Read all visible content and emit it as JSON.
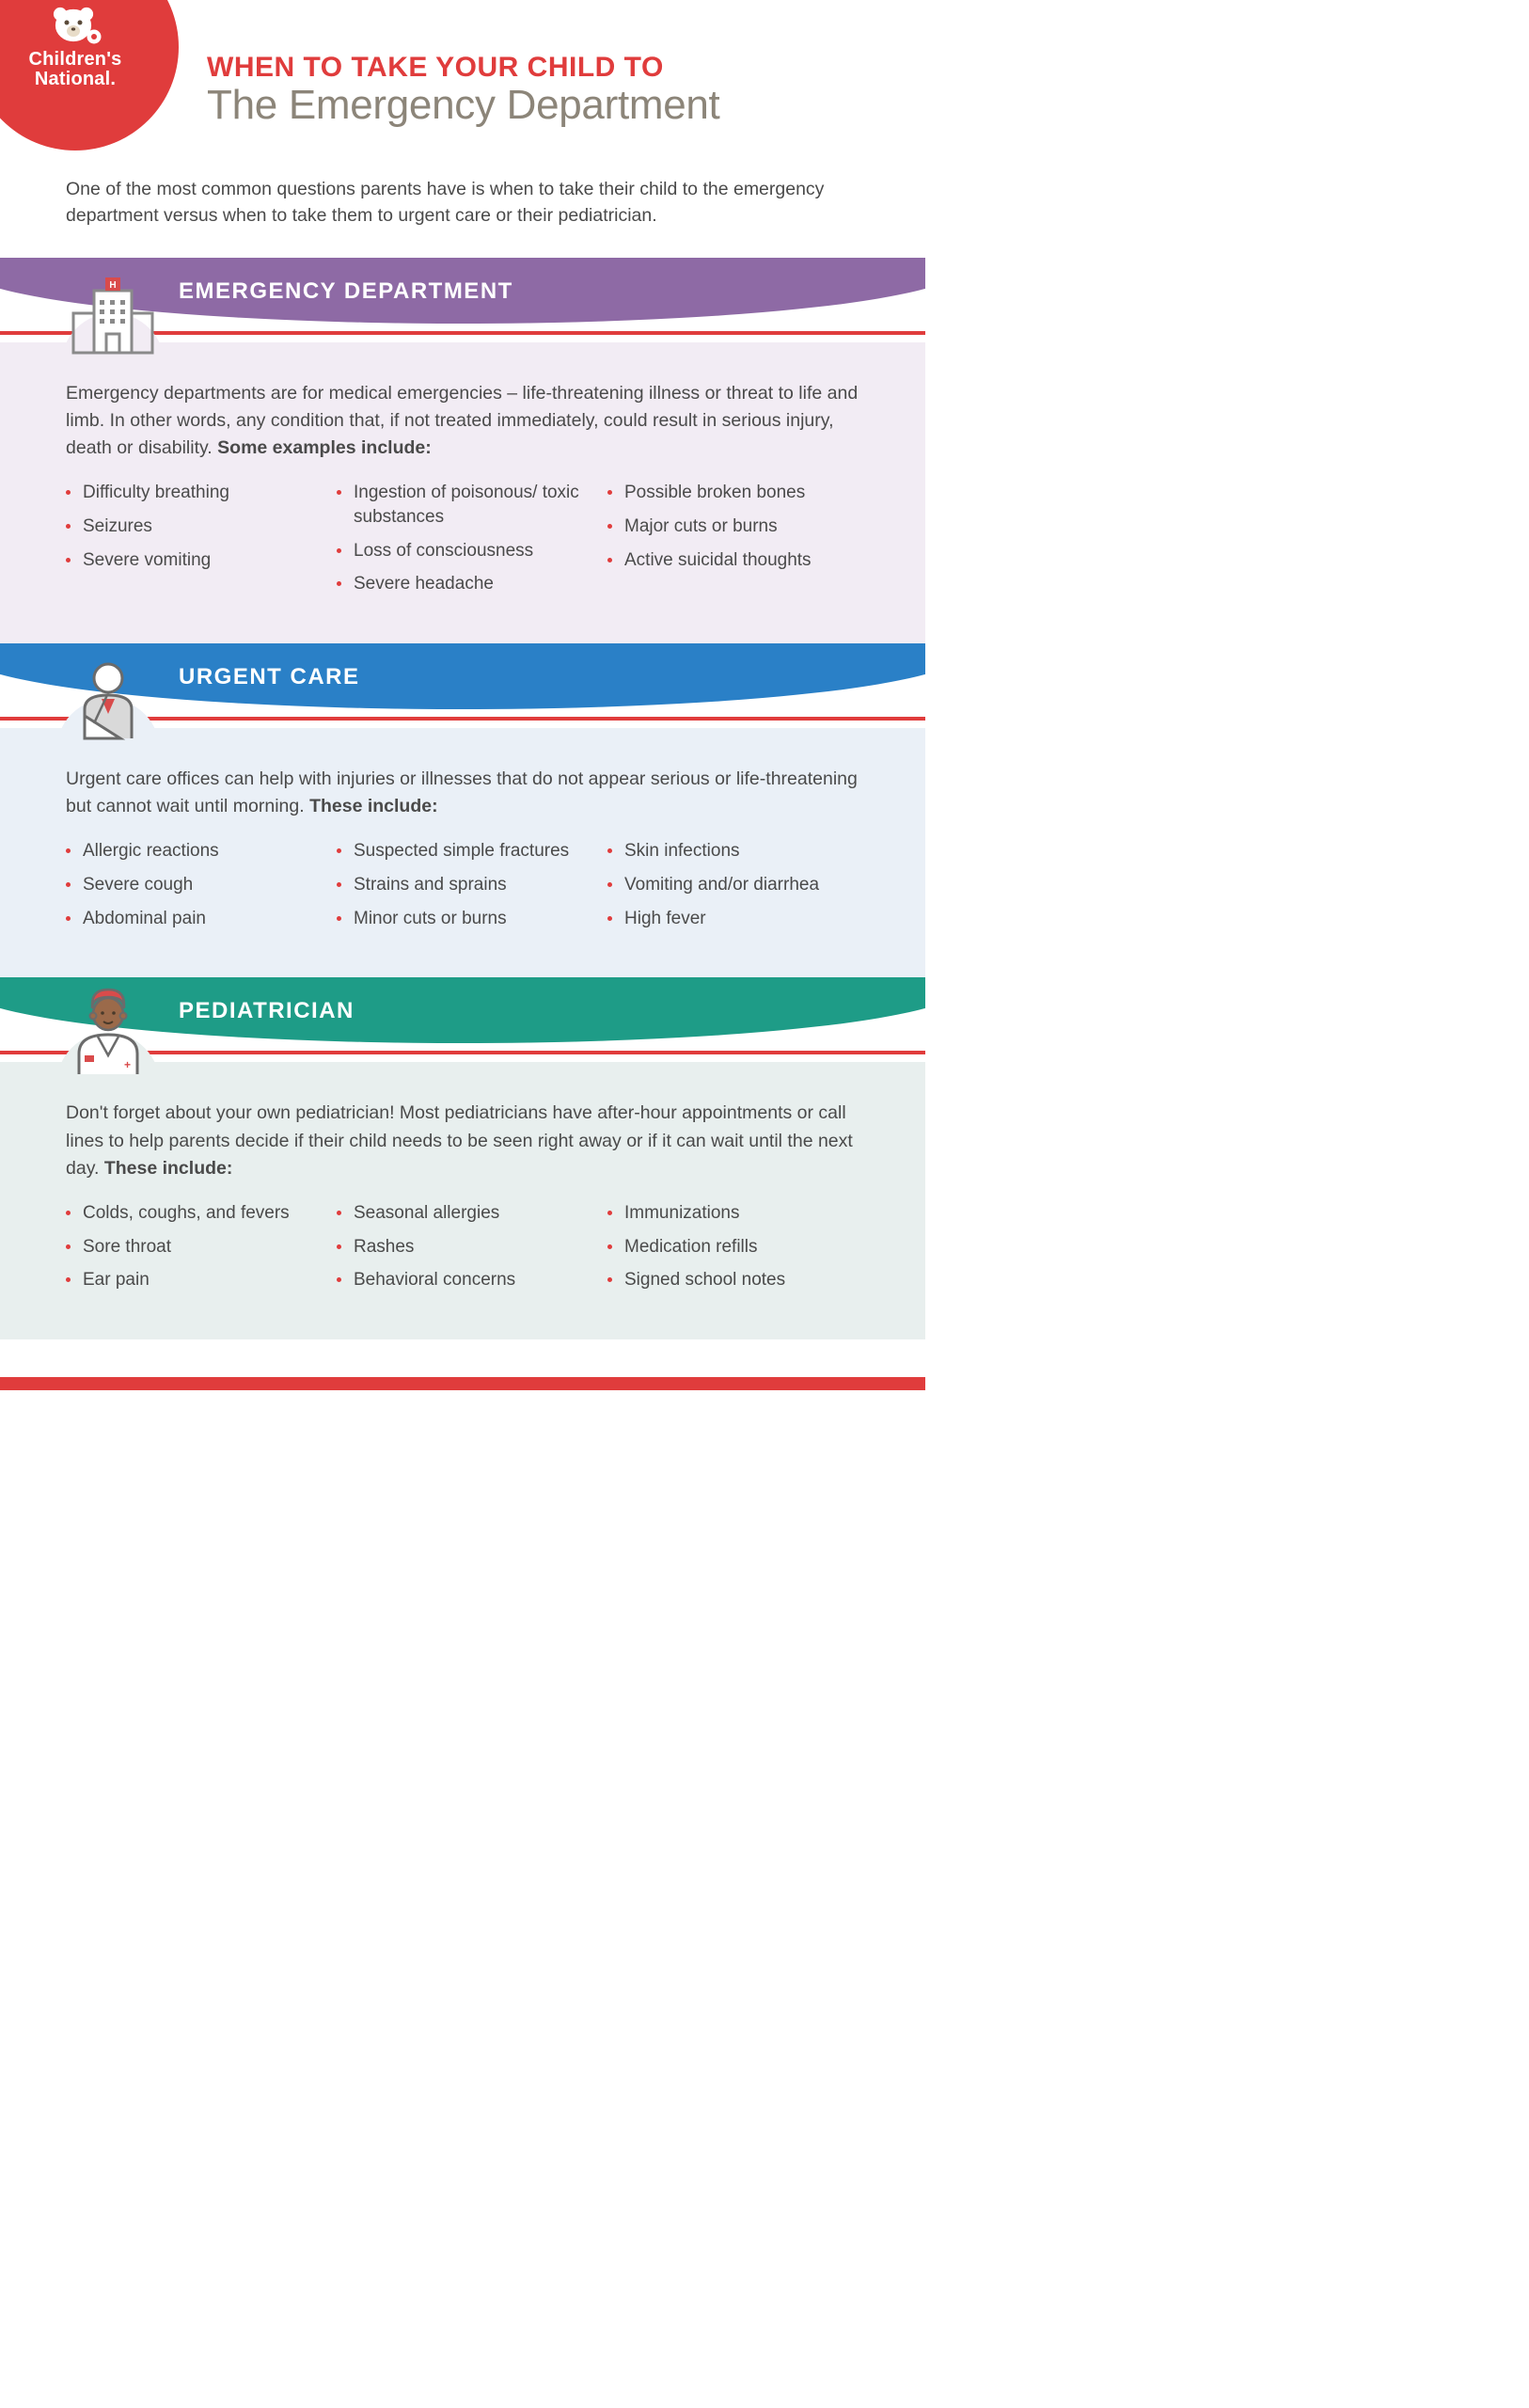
{
  "brand": {
    "name_line1": "Children's",
    "name_line2": "National",
    "circle_color": "#e03c3c"
  },
  "title": {
    "line1": "WHEN TO TAKE YOUR CHILD TO",
    "line2": "The Emergency Department",
    "line1_color": "#e03c3c",
    "line2_color": "#8c8579",
    "line1_fontsize": 30,
    "line2_fontsize": 44
  },
  "intro": "One of the most common questions parents have is when to take their child to the emergency department versus when to take them to urgent care or their pediatrician.",
  "bullet_color": "#e03c3c",
  "body_fontsize": 19.5,
  "sections": {
    "emergency": {
      "heading": "EMERGENCY DEPARTMENT",
      "banner_color": "#8e6aa5",
      "content_bg": "#f2ecf4",
      "icon_name": "hospital",
      "description": "Emergency departments are for medical emergencies – life-threatening illness or threat to life and limb. In other words, any condition that, if not treated immediately, could result in serious injury, death or disability. ",
      "lead_in": "Some examples include:",
      "columns": [
        [
          "Difficulty breathing",
          "Seizures",
          "Severe vomiting"
        ],
        [
          "Ingestion of poisonous/ toxic substances",
          "Loss of consciousness",
          "Severe headache"
        ],
        [
          "Possible broken bones",
          "Major cuts or burns",
          "Active suicidal thoughts"
        ]
      ]
    },
    "urgent": {
      "heading": "URGENT CARE",
      "banner_color": "#2a80c7",
      "content_bg": "#eaf0f7",
      "icon_name": "arm-sling",
      "description": "Urgent care offices can help with injuries or illnesses that do not appear serious or life-threatening but cannot wait until morning. ",
      "lead_in": "These include:",
      "columns": [
        [
          "Allergic reactions",
          "Severe cough",
          "Abdominal pain"
        ],
        [
          "Suspected simple fractures",
          "Strains and sprains",
          "Minor cuts or burns"
        ],
        [
          "Skin infections",
          "Vomiting and/or diarrhea",
          "High fever"
        ]
      ]
    },
    "pediatrician": {
      "heading": "PEDIATRICIAN",
      "banner_color": "#1e9c87",
      "content_bg": "#e8efee",
      "icon_name": "doctor",
      "description": "Don't forget about your own pediatrician! Most pediatricians have after-hour appointments or call lines to help parents decide if their child needs to be seen right away or if it can wait until the next day. ",
      "lead_in": "These include:",
      "columns": [
        [
          "Colds, coughs, and fevers",
          "Sore throat",
          "Ear pain"
        ],
        [
          "Seasonal allergies",
          "Rashes",
          "Behavioral concerns"
        ],
        [
          "Immunizations",
          "Medication refills",
          "Signed school notes"
        ]
      ]
    }
  }
}
